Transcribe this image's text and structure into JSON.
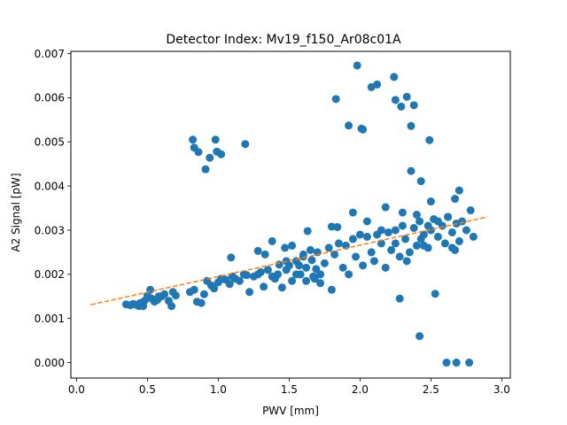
{
  "chart_data": {
    "type": "scatter",
    "title": "Detector Index: Mv19_f150_Ar08c01A",
    "xlabel": "PWV [mm]",
    "ylabel": "A2 Signal [pW]",
    "xlim": [
      -0.04,
      3.06
    ],
    "ylim": [
      -0.00035,
      0.00705
    ],
    "xticks": [
      0.0,
      0.5,
      1.0,
      1.5,
      2.0,
      2.5,
      3.0
    ],
    "xtick_labels": [
      "0.0",
      "0.5",
      "1.0",
      "1.5",
      "2.0",
      "2.5",
      "3.0"
    ],
    "yticks": [
      0.0,
      0.001,
      0.002,
      0.003,
      0.004,
      0.005,
      0.006,
      0.007
    ],
    "ytick_labels": [
      "0.000",
      "0.001",
      "0.002",
      "0.003",
      "0.004",
      "0.005",
      "0.006",
      "0.007"
    ],
    "grid": false,
    "colors": {
      "points": "#1f77b4",
      "fit": "#ff7f0e"
    },
    "series": [
      {
        "name": "data",
        "kind": "scatter",
        "points": [
          [
            0.35,
            0.00132
          ],
          [
            0.38,
            0.0013
          ],
          [
            0.4,
            0.00133
          ],
          [
            0.42,
            0.00131
          ],
          [
            0.45,
            0.00135
          ],
          [
            0.47,
            0.00128
          ],
          [
            0.48,
            0.0014
          ],
          [
            0.5,
            0.00152
          ],
          [
            0.52,
            0.00165
          ],
          [
            0.53,
            0.00145
          ],
          [
            0.55,
            0.00138
          ],
          [
            0.57,
            0.00142
          ],
          [
            0.6,
            0.0015
          ],
          [
            0.62,
            0.00155
          ],
          [
            0.65,
            0.0014
          ],
          [
            0.68,
            0.0016
          ],
          [
            0.7,
            0.00152
          ],
          [
            0.67,
            0.00128
          ],
          [
            0.58,
            0.0015
          ],
          [
            0.44,
            0.00128
          ],
          [
            0.8,
            0.0016
          ],
          [
            0.83,
            0.00165
          ],
          [
            0.85,
            0.00138
          ],
          [
            0.88,
            0.00135
          ],
          [
            0.9,
            0.00155
          ],
          [
            0.92,
            0.00185
          ],
          [
            0.95,
            0.00175
          ],
          [
            0.97,
            0.00168
          ],
          [
            1.0,
            0.00182
          ],
          [
            1.02,
            0.0019
          ],
          [
            1.05,
            0.00188
          ],
          [
            1.08,
            0.00178
          ],
          [
            1.1,
            0.00195
          ],
          [
            1.12,
            0.0019
          ],
          [
            1.15,
            0.00185
          ],
          [
            1.18,
            0.002
          ],
          [
            1.2,
            0.00198
          ],
          [
            1.22,
            0.0016
          ],
          [
            1.25,
            0.00195
          ],
          [
            1.28,
            0.002
          ],
          [
            1.3,
            0.00205
          ],
          [
            1.32,
            0.00172
          ],
          [
            1.35,
            0.0021
          ],
          [
            1.38,
            0.00195
          ],
          [
            1.09,
            0.00238
          ],
          [
            1.28,
            0.00253
          ],
          [
            1.38,
            0.00275
          ],
          [
            1.33,
            0.00245
          ],
          [
            1.4,
            0.0019
          ],
          [
            1.42,
            0.002
          ],
          [
            1.45,
            0.0017
          ],
          [
            1.48,
            0.0021
          ],
          [
            1.5,
            0.0022
          ],
          [
            1.52,
            0.00185
          ],
          [
            1.55,
            0.0023
          ],
          [
            1.58,
            0.002
          ],
          [
            1.6,
            0.0024
          ],
          [
            1.62,
            0.00215
          ],
          [
            1.65,
            0.00255
          ],
          [
            1.68,
            0.0019
          ],
          [
            1.7,
            0.0025
          ],
          [
            1.72,
            0.0018
          ],
          [
            1.75,
            0.00225
          ],
          [
            1.78,
            0.0026
          ],
          [
            1.8,
            0.00165
          ],
          [
            1.82,
            0.00245
          ],
          [
            1.85,
            0.0027
          ],
          [
            1.88,
            0.00215
          ],
          [
            1.9,
            0.00265
          ],
          [
            1.92,
            0.002
          ],
          [
            1.95,
            0.0028
          ],
          [
            1.97,
            0.0024
          ],
          [
            1.55,
            0.002
          ],
          [
            1.62,
            0.00185
          ],
          [
            1.48,
            0.0023
          ],
          [
            1.72,
            0.002
          ],
          [
            1.6,
            0.00245
          ],
          [
            1.52,
            0.00265
          ],
          [
            1.57,
            0.0022
          ],
          [
            1.66,
            0.00232
          ],
          [
            1.69,
            0.00212
          ],
          [
            1.63,
            0.00298
          ],
          [
            1.8,
            0.00308
          ],
          [
            1.47,
            0.0026
          ],
          [
            1.43,
            0.00222
          ],
          [
            1.67,
            0.00195
          ],
          [
            2.0,
            0.0029
          ],
          [
            2.02,
            0.0022
          ],
          [
            2.05,
            0.00285
          ],
          [
            2.08,
            0.0025
          ],
          [
            2.1,
            0.0023
          ],
          [
            2.12,
            0.0029
          ],
          [
            2.15,
            0.0027
          ],
          [
            2.18,
            0.00215
          ],
          [
            2.2,
            0.00295
          ],
          [
            2.22,
            0.00255
          ],
          [
            2.25,
            0.003
          ],
          [
            2.28,
            0.0024
          ],
          [
            2.3,
            0.0031
          ],
          [
            2.32,
            0.0028
          ],
          [
            2.35,
            0.0025
          ],
          [
            2.38,
            0.00305
          ],
          [
            2.4,
            0.00265
          ],
          [
            2.42,
            0.0032
          ],
          [
            2.45,
            0.0029
          ],
          [
            2.48,
            0.0026
          ],
          [
            2.5,
            0.003
          ],
          [
            2.52,
            0.00325
          ],
          [
            2.55,
            0.00285
          ],
          [
            2.58,
            0.0031
          ],
          [
            2.6,
            0.0027
          ],
          [
            2.62,
            0.0033
          ],
          [
            2.65,
            0.00295
          ],
          [
            2.68,
            0.00315
          ],
          [
            2.7,
            0.00275
          ],
          [
            2.72,
            0.0032
          ],
          [
            2.75,
            0.003
          ],
          [
            2.78,
            0.00345
          ],
          [
            2.8,
            0.00285
          ],
          [
            2.05,
            0.0032
          ],
          [
            2.15,
            0.003
          ],
          [
            2.25,
            0.0027
          ],
          [
            2.33,
            0.0023
          ],
          [
            2.43,
            0.0028
          ],
          [
            2.55,
            0.0032
          ],
          [
            2.65,
            0.0026
          ],
          [
            2.3,
            0.0034
          ],
          [
            2.4,
            0.00335
          ],
          [
            2.48,
            0.0031
          ],
          [
            2.62,
            0.0033
          ],
          [
            2.67,
            0.00255
          ],
          [
            2.45,
            0.00265
          ],
          [
            0.82,
            0.00505
          ],
          [
            0.83,
            0.00487
          ],
          [
            0.86,
            0.00477
          ],
          [
            0.91,
            0.00438
          ],
          [
            0.94,
            0.00464
          ],
          [
            0.98,
            0.00505
          ],
          [
            0.99,
            0.00478
          ],
          [
            1.02,
            0.00472
          ],
          [
            1.19,
            0.00495
          ],
          [
            1.83,
            0.00597
          ],
          [
            1.92,
            0.00537
          ],
          [
            1.98,
            0.00673
          ],
          [
            2.01,
            0.0053
          ],
          [
            2.02,
            0.00528
          ],
          [
            2.08,
            0.00624
          ],
          [
            2.12,
            0.0063
          ],
          [
            2.24,
            0.00647
          ],
          [
            2.25,
            0.00595
          ],
          [
            2.29,
            0.0058
          ],
          [
            2.33,
            0.00602
          ],
          [
            2.36,
            0.00536
          ],
          [
            2.38,
            0.00583
          ],
          [
            2.49,
            0.00504
          ],
          [
            2.36,
            0.00434
          ],
          [
            2.43,
            0.00411
          ],
          [
            2.5,
            0.00365
          ],
          [
            2.67,
            0.00371
          ],
          [
            2.7,
            0.0039
          ],
          [
            2.18,
            0.00352
          ],
          [
            1.95,
            0.0034
          ],
          [
            1.84,
            0.00307
          ],
          [
            2.28,
            0.00145
          ],
          [
            2.53,
            0.00156
          ],
          [
            2.42,
            0.0006
          ],
          [
            2.61,
            0.0
          ],
          [
            2.68,
            0.0
          ],
          [
            2.77,
            0.0
          ]
        ]
      },
      {
        "name": "fit",
        "kind": "line",
        "style": "dashed",
        "x": [
          0.1,
          2.9
        ],
        "y": [
          0.00131,
          0.0033
        ]
      }
    ]
  }
}
